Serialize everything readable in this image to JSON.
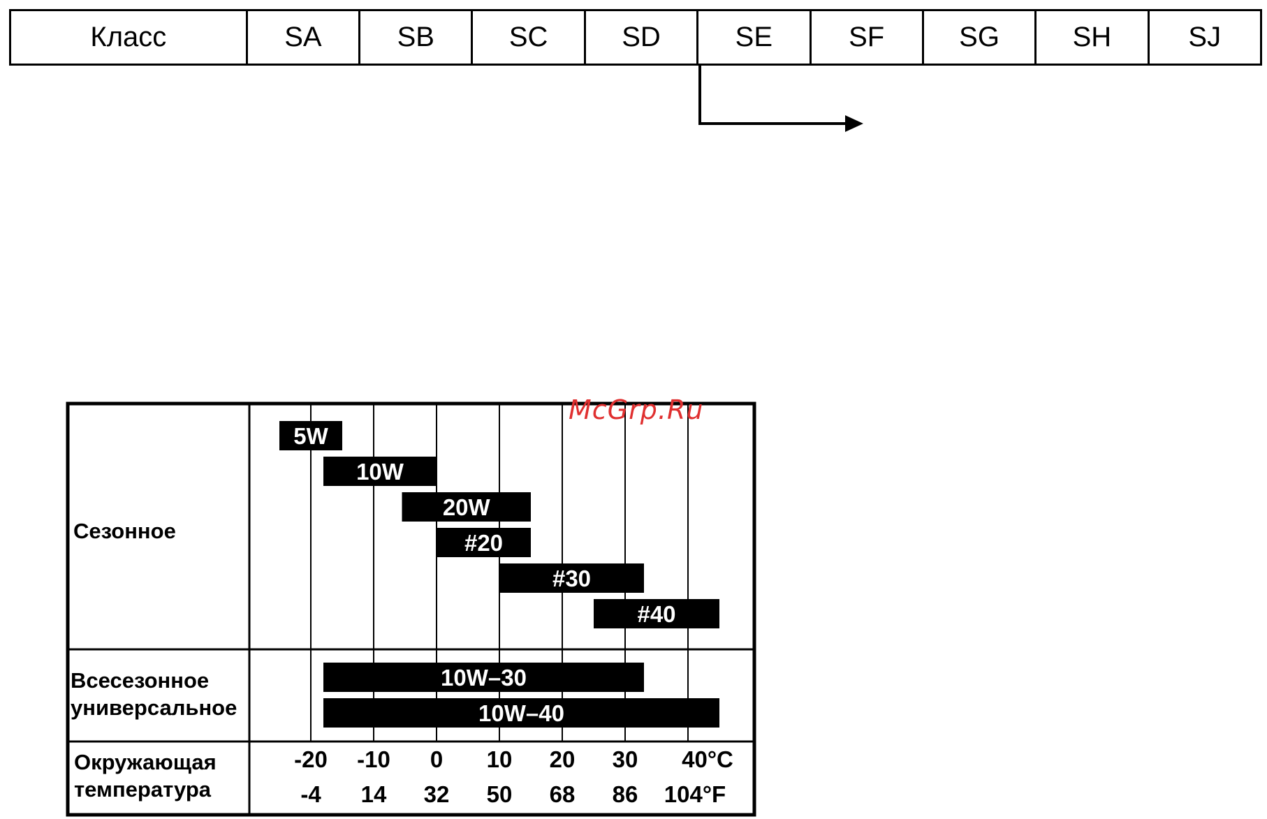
{
  "class_table": {
    "header": "Класс",
    "classes": [
      "SA",
      "SB",
      "SC",
      "SD",
      "SE",
      "SF",
      "SG",
      "SH",
      "SJ"
    ]
  },
  "watermark": "McGrp.Ru",
  "viscosity_chart": {
    "row_labels": {
      "seasonal": "Сезонное",
      "multigrade_line1": "Всесезонное",
      "multigrade_line2": "универсальное",
      "ambient_line1": "Окружающая",
      "ambient_line2": "температура"
    },
    "celsius_ticks": [
      "-20",
      "-10",
      "0",
      "10",
      "20",
      "30",
      "40°C"
    ],
    "fahrenheit_ticks": [
      "-4",
      "14",
      "32",
      "50",
      "68",
      "86",
      "104°F"
    ],
    "seasonal_grades": [
      {
        "label": "5W",
        "from_c": -25,
        "to_c": -15
      },
      {
        "label": "10W",
        "from_c": -18,
        "to_c": 0
      },
      {
        "label": "20W",
        "from_c": -5.5,
        "to_c": 15
      },
      {
        "label": "#20",
        "from_c": 0,
        "to_c": 15
      },
      {
        "label": "#30",
        "from_c": 10,
        "to_c": 33
      },
      {
        "label": "#40",
        "from_c": 25,
        "to_c": 45
      }
    ],
    "multigrade_grades": [
      {
        "label": "10W–30",
        "from_c": -18,
        "to_c": 33
      },
      {
        "label": "10W–40",
        "from_c": -18,
        "to_c": 45
      }
    ]
  }
}
